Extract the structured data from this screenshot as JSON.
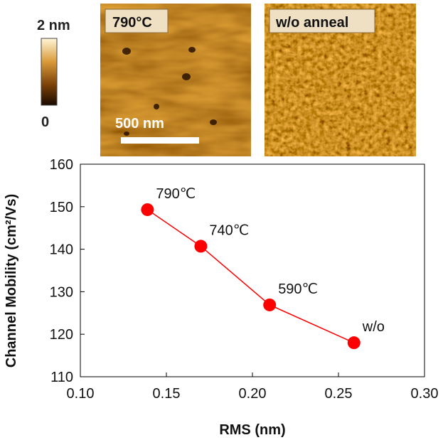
{
  "colorbar": {
    "max_label": "2 nm",
    "min_label": "0"
  },
  "images": [
    {
      "label": "790°C",
      "scale_label": "500 nm"
    },
    {
      "label": "w/o anneal"
    }
  ],
  "chart_data": {
    "type": "scatter",
    "xlabel": "RMS (nm)",
    "ylabel": "Channel Mobility (cm²/Vs)",
    "xlim": [
      0.1,
      0.3
    ],
    "ylim": [
      110,
      160
    ],
    "xticks": [
      0.1,
      0.15,
      0.2,
      0.25,
      0.3
    ],
    "xtick_labels": [
      "0.10",
      "0.15",
      "0.20",
      "0.25",
      "0.30"
    ],
    "yticks": [
      110,
      120,
      130,
      140,
      150,
      160
    ],
    "ytick_labels": [
      "110",
      "120",
      "130",
      "140",
      "150",
      "160"
    ],
    "grid": false,
    "connected": true,
    "color": "#ff0000",
    "points": [
      {
        "x": 0.139,
        "y": 149.3,
        "label": "790℃"
      },
      {
        "x": 0.17,
        "y": 140.7,
        "label": "740℃"
      },
      {
        "x": 0.21,
        "y": 126.9,
        "label": "590℃"
      },
      {
        "x": 0.259,
        "y": 118.0,
        "label": "w/o"
      }
    ]
  }
}
